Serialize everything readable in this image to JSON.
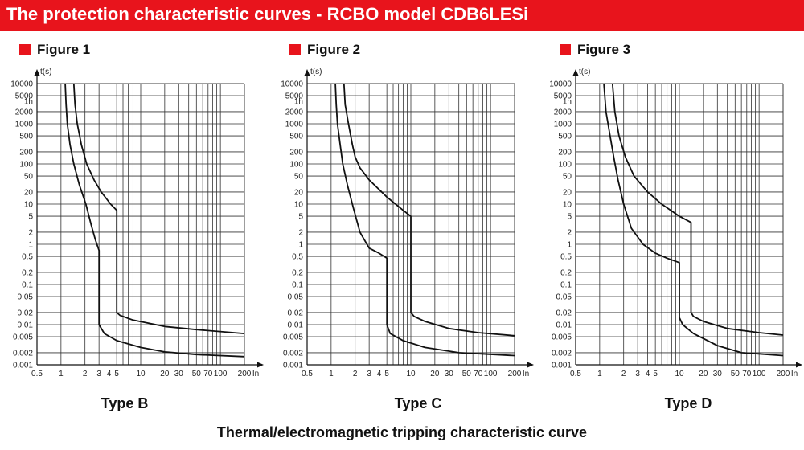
{
  "header": {
    "title": "The protection characteristic curves - RCBO model CDB6LESi"
  },
  "colors": {
    "accent": "#e8141c",
    "line": "#111111",
    "grid": "#333333"
  },
  "axis": {
    "y_unit": "t(s)",
    "x_unit": "In",
    "y_ticks": [
      10000,
      5000,
      2000,
      1000,
      500,
      200,
      100,
      50,
      20,
      10,
      5,
      2,
      1,
      0.5,
      0.2,
      0.1,
      0.05,
      0.02,
      0.01,
      0.005,
      0.002,
      0.001
    ],
    "y_tick_labels": [
      "10000",
      "5000",
      "2000",
      "1000",
      "500",
      "200",
      "100",
      "50",
      "20",
      "10",
      "5",
      "2",
      "1",
      "0.5",
      "0.2",
      "0.1",
      "0.05",
      "0.02",
      "0.01",
      "0.005",
      "0.002",
      "0.001"
    ],
    "y_extra_label": "1h",
    "y_extra_value": 3600,
    "x_ticks": [
      0.5,
      1,
      2,
      3,
      4,
      5,
      10,
      20,
      30,
      50,
      70,
      100,
      200
    ],
    "x_tick_labels": [
      "0.5",
      "1",
      "2",
      "3",
      "4",
      "5",
      "10",
      "20",
      "30",
      "50",
      "70",
      "100",
      "200"
    ],
    "x_gridlines": [
      1,
      2,
      3,
      4,
      5,
      6,
      7,
      8,
      9,
      10,
      20,
      30,
      40,
      50,
      60,
      70,
      80,
      90,
      100,
      200
    ],
    "x_range": [
      0.5,
      200
    ],
    "y_range": [
      0.001,
      10000
    ]
  },
  "chart_data": [
    {
      "type": "line",
      "figure": "Figure 1",
      "title": "Type B",
      "xlabel": "In",
      "ylabel": "t(s)",
      "xlim": [
        0.5,
        200
      ],
      "ylim": [
        0.001,
        10000
      ],
      "series": [
        {
          "name": "lower limit",
          "points": [
            [
              1.13,
              10000
            ],
            [
              1.16,
              3000
            ],
            [
              1.2,
              1000
            ],
            [
              1.3,
              300
            ],
            [
              1.45,
              100
            ],
            [
              1.7,
              30
            ],
            [
              2.05,
              10
            ],
            [
              2.4,
              3
            ],
            [
              2.7,
              1.3
            ],
            [
              3,
              0.7
            ],
            [
              3,
              0.01
            ],
            [
              3.5,
              0.006
            ],
            [
              5,
              0.004
            ],
            [
              10,
              0.0027
            ],
            [
              20,
              0.0021
            ],
            [
              50,
              0.0018
            ],
            [
              200,
              0.0016
            ]
          ]
        },
        {
          "name": "upper limit",
          "points": [
            [
              1.45,
              10000
            ],
            [
              1.5,
              3000
            ],
            [
              1.6,
              1000
            ],
            [
              1.8,
              300
            ],
            [
              2.1,
              100
            ],
            [
              2.6,
              40
            ],
            [
              3.2,
              20
            ],
            [
              4.2,
              10
            ],
            [
              5,
              7
            ],
            [
              5,
              0.02
            ],
            [
              5.5,
              0.017
            ],
            [
              8,
              0.013
            ],
            [
              20,
              0.009
            ],
            [
              50,
              0.0075
            ],
            [
              200,
              0.006
            ]
          ]
        }
      ]
    },
    {
      "type": "line",
      "figure": "Figure 2",
      "title": "Type C",
      "xlabel": "In",
      "ylabel": "t(s)",
      "xlim": [
        0.5,
        200
      ],
      "ylim": [
        0.001,
        10000
      ],
      "series": [
        {
          "name": "lower limit",
          "points": [
            [
              1.13,
              10000
            ],
            [
              1.16,
              3000
            ],
            [
              1.2,
              1000
            ],
            [
              1.3,
              300
            ],
            [
              1.4,
              100
            ],
            [
              1.6,
              30
            ],
            [
              1.9,
              8
            ],
            [
              2.3,
              2
            ],
            [
              3,
              0.8
            ],
            [
              4,
              0.6
            ],
            [
              5,
              0.45
            ],
            [
              5,
              0.01
            ],
            [
              5.5,
              0.006
            ],
            [
              8,
              0.004
            ],
            [
              15,
              0.0027
            ],
            [
              40,
              0.002
            ],
            [
              200,
              0.0017
            ]
          ]
        },
        {
          "name": "upper limit",
          "points": [
            [
              1.45,
              10000
            ],
            [
              1.5,
              3000
            ],
            [
              1.65,
              1000
            ],
            [
              1.85,
              300
            ],
            [
              2,
              150
            ],
            [
              2.3,
              80
            ],
            [
              3,
              40
            ],
            [
              5,
              15
            ],
            [
              8,
              7
            ],
            [
              10,
              5
            ],
            [
              10,
              0.02
            ],
            [
              11,
              0.016
            ],
            [
              15,
              0.012
            ],
            [
              30,
              0.008
            ],
            [
              70,
              0.0063
            ],
            [
              200,
              0.0053
            ]
          ]
        }
      ]
    },
    {
      "type": "line",
      "figure": "Figure 3",
      "title": "Type D",
      "xlabel": "In",
      "ylabel": "t(s)",
      "xlim": [
        0.5,
        200
      ],
      "ylim": [
        0.001,
        10000
      ],
      "series": [
        {
          "name": "lower limit",
          "points": [
            [
              1.13,
              10000
            ],
            [
              1.2,
              2000
            ],
            [
              1.35,
              500
            ],
            [
              1.5,
              150
            ],
            [
              1.7,
              40
            ],
            [
              2,
              10
            ],
            [
              2.5,
              2.5
            ],
            [
              3.5,
              1
            ],
            [
              5,
              0.6
            ],
            [
              7,
              0.45
            ],
            [
              10,
              0.35
            ],
            [
              10,
              0.015
            ],
            [
              11,
              0.01
            ],
            [
              15,
              0.006
            ],
            [
              30,
              0.003
            ],
            [
              60,
              0.002
            ],
            [
              200,
              0.0017
            ]
          ]
        },
        {
          "name": "upper limit",
          "points": [
            [
              1.45,
              10000
            ],
            [
              1.55,
              2000
            ],
            [
              1.75,
              500
            ],
            [
              2.1,
              150
            ],
            [
              2.7,
              50
            ],
            [
              4,
              20
            ],
            [
              6,
              10
            ],
            [
              10,
              5
            ],
            [
              14,
              3.5
            ],
            [
              14,
              0.02
            ],
            [
              15,
              0.016
            ],
            [
              20,
              0.012
            ],
            [
              40,
              0.008
            ],
            [
              100,
              0.0063
            ],
            [
              200,
              0.0055
            ]
          ]
        }
      ]
    }
  ],
  "figures": [
    {
      "label": "Figure 1",
      "type_label": "Type B"
    },
    {
      "label": "Figure 2",
      "type_label": "Type C"
    },
    {
      "label": "Figure 3",
      "type_label": "Type D"
    }
  ],
  "caption": "Thermal/electromagnetic tripping characteristic curve"
}
